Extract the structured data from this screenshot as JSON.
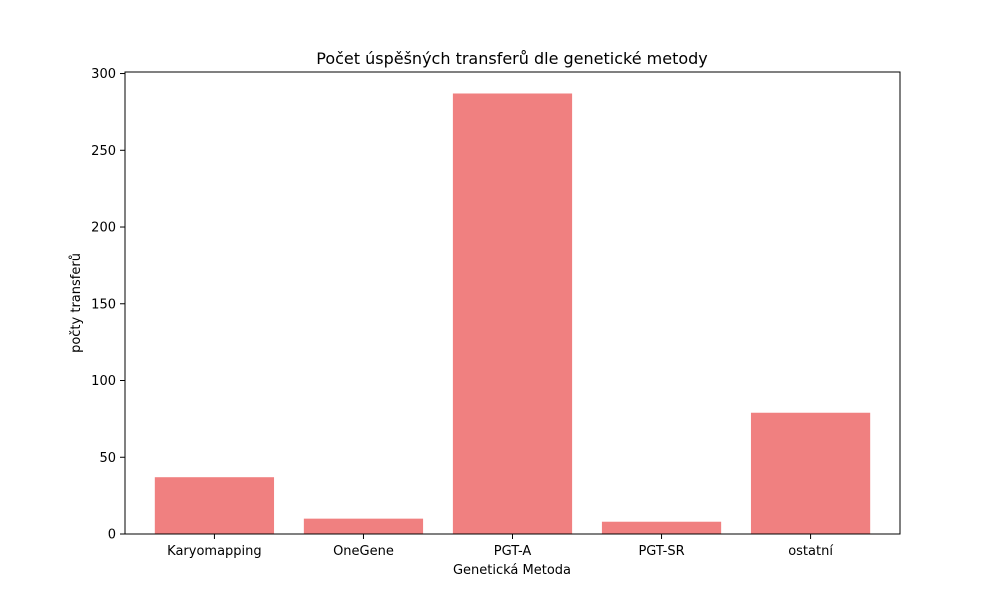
{
  "chart_data": {
    "type": "bar",
    "title": "Počet úspěšných transferů dle genetické metody",
    "xlabel": "Genetická Metoda",
    "ylabel": "počty transferů",
    "categories": [
      "Karyomapping",
      "OneGene",
      "PGT-A",
      "PGT-SR",
      "ostatní"
    ],
    "values": [
      37,
      10,
      287,
      8,
      79
    ],
    "ylim": [
      0,
      301
    ],
    "yticks": [
      0,
      50,
      100,
      150,
      200,
      250,
      300
    ],
    "bar_color": "#f08080",
    "grid": false,
    "legend": "none"
  }
}
